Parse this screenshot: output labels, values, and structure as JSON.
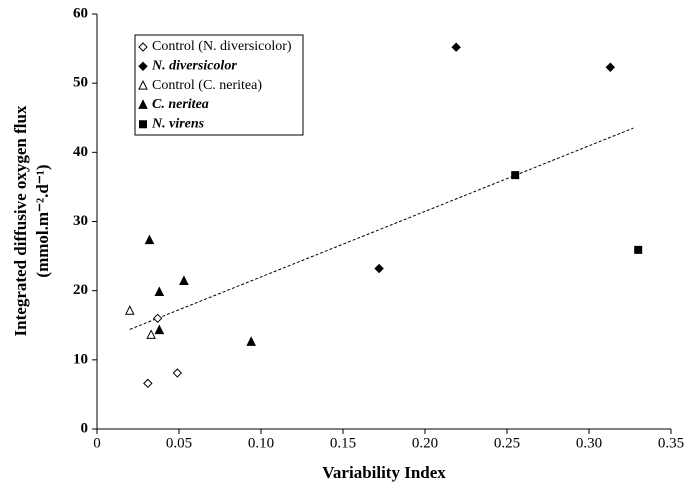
{
  "chart_data": {
    "type": "scatter",
    "x_label": "Variability Index",
    "y_label": [
      "Integrated diffusive oxygen flux",
      "(mmol.m⁻².d⁻¹)"
    ],
    "xlim": [
      0,
      0.35
    ],
    "xticks": [
      0,
      0.05,
      {
        "value": 0.1,
        "label": "0.10"
      },
      0.15,
      {
        "value": 0.2,
        "label": "0.20"
      },
      0.25,
      {
        "value": 0.3,
        "label": "0.30"
      },
      0.35
    ],
    "ylim": [
      0,
      60
    ],
    "yticks": [
      0,
      10,
      20,
      30,
      40,
      50,
      60
    ],
    "series": [
      {
        "name": "Control (N. diversicolor)",
        "color": "#000000",
        "marker": "diamond-open",
        "x": [
          0.031,
          0.037,
          0.049
        ],
        "values": [
          6.6,
          16.0,
          8.1
        ]
      },
      {
        "name": "N. diversicolor",
        "color": "#000000",
        "marker": "diamond",
        "x": [
          0.172,
          0.219,
          0.313
        ],
        "values": [
          23.2,
          55.2,
          52.3
        ]
      },
      {
        "name": "Control (C. neritea)",
        "color": "#000000",
        "marker": "triangle-open",
        "x": [
          0.02,
          0.033
        ],
        "values": [
          17.1,
          13.6
        ]
      },
      {
        "name": "C. neritea",
        "color": "#000000",
        "marker": "triangle",
        "x": [
          0.032,
          0.038,
          0.053,
          0.038,
          0.094
        ],
        "values": [
          27.3,
          19.8,
          21.4,
          14.3,
          12.6
        ]
      },
      {
        "name": "N. virens",
        "color": "#000000",
        "marker": "square",
        "x": [
          0.255,
          0.33
        ],
        "values": [
          36.7,
          25.9
        ]
      }
    ],
    "trendline": {
      "x": [
        0.02,
        0.327
      ],
      "values": [
        14.4,
        43.5
      ]
    }
  }
}
